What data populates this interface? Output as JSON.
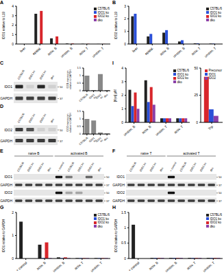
{
  "chart_data": [
    {
      "type": "bar",
      "title": "A",
      "y_label": "IDO1 relative to L19",
      "categories": [
        "liver",
        "epidid.",
        "activ. B",
        "unstim. B",
        "activ. T",
        "unstim. T"
      ],
      "series": [
        {
          "name": "C57BL/6",
          "color": "#222222",
          "values": [
            0,
            3.2,
            0.6,
            0.05,
            0.02,
            0.01
          ]
        },
        {
          "name": "IDO1 ko",
          "color": "#2b50d8",
          "values": [
            0,
            0,
            0,
            0,
            0,
            0
          ]
        },
        {
          "name": "IDO2 ko",
          "color": "#d8262b",
          "values": [
            0,
            3.5,
            0.8,
            0.05,
            0.02,
            0.01
          ]
        },
        {
          "name": "dko",
          "color": "#8b3fa8",
          "values": [
            0,
            0,
            0,
            0,
            0,
            0
          ]
        }
      ],
      "ylim": [
        0,
        4
      ],
      "yticks": [
        0,
        1,
        2,
        3,
        4
      ]
    },
    {
      "type": "bar",
      "title": "B",
      "y_label": "IDO2 relative to L19",
      "categories": [
        "liver",
        "epidid.",
        "activ. B",
        "unstim. B",
        "activ. T",
        "unstim. T"
      ],
      "series": [
        {
          "name": "C57BL/6",
          "color": "#222222",
          "values": [
            2.2,
            0.6,
            0.9,
            0.2,
            0.05,
            0.03
          ]
        },
        {
          "name": "IDO1 ko",
          "color": "#2b50d8",
          "values": [
            2.4,
            0.8,
            1.1,
            0.3,
            0.05,
            0.03
          ]
        },
        {
          "name": "IDO2 ko",
          "color": "#d8262b",
          "values": [
            0,
            0,
            0,
            0,
            0,
            0
          ]
        },
        {
          "name": "dko",
          "color": "#8b3fa8",
          "values": [
            0,
            0,
            0,
            0,
            0,
            0
          ]
        }
      ],
      "ylim": [
        0,
        3
      ],
      "yticks": [
        0,
        1,
        2,
        3
      ]
    },
    {
      "type": "bar",
      "title": "C",
      "y_label": "IDO1 expression relative to GAPDH",
      "categories": [
        "C57BL/6",
        "IDO1 ko",
        "IDO2 ko",
        "dko"
      ],
      "values": [
        1.0,
        0.05,
        1.1,
        0.05
      ],
      "color": "#888888",
      "ylim": [
        0,
        1.5
      ],
      "yticks": [
        0,
        0.5,
        1,
        1.5
      ]
    },
    {
      "type": "bar",
      "title": "D",
      "y_label": "IDO2 expression relative to GAPDH",
      "categories": [
        "C57BL/6",
        "IDO1 ko",
        "IDO2 ko",
        "dko"
      ],
      "values": [
        1.0,
        0.9,
        0.1,
        0.05
      ],
      "color": "#888888",
      "ylim": [
        0,
        1.5
      ],
      "yticks": [
        0,
        0.5,
        1,
        1.5
      ]
    },
    {
      "type": "bar",
      "title": "I",
      "y_label": "[Kyn] µM",
      "categories": [
        "unstim. B",
        "activ. B",
        "unstim. T",
        "activ. T"
      ],
      "series": [
        {
          "name": "C57BL/6",
          "color": "#222222",
          "values": [
            2.4,
            3.1,
            0.3,
            0.3
          ]
        },
        {
          "name": "IDO1 ko",
          "color": "#2b50d8",
          "values": [
            1.2,
            1.5,
            0.3,
            0.3
          ]
        },
        {
          "name": "IDO2 ko",
          "color": "#d8262b",
          "values": [
            2.2,
            2.6,
            0.3,
            0.3
          ]
        },
        {
          "name": "dko",
          "color": "#8b3fa8",
          "values": [
            1.0,
            1.3,
            0.3,
            0.3
          ]
        }
      ],
      "ylim": [
        0,
        4
      ],
      "yticks": [
        0,
        1,
        2,
        3,
        4
      ]
    },
    {
      "type": "bar",
      "categories": [
        "Trp"
      ],
      "series": [
        {
          "name": "Precursor",
          "color": "#d8262b",
          "values": [
            42
          ]
        },
        {
          "name": "IDO1",
          "color": "#2b50d8",
          "values": [
            12
          ]
        },
        {
          "name": "IDO2",
          "color": "#8b3fa8",
          "values": [
            6
          ]
        }
      ],
      "ylim": [
        0,
        50
      ],
      "yticks": [
        0,
        25,
        50
      ]
    },
    {
      "type": "bar",
      "title": "G",
      "y_label": "IDO1 relative to GAPDH",
      "categories": [
        "+ control",
        "activ. B",
        "unstim. B",
        "activ. T",
        "unstim. T"
      ],
      "series": [
        {
          "name": "C57BL/6",
          "color": "#222222",
          "values": [
            1.6,
            0.6,
            0.05,
            0.02,
            0.02
          ]
        },
        {
          "name": "IDO1 ko",
          "color": "#2b50d8",
          "values": [
            null,
            0.02,
            0.02,
            0.02,
            0.02
          ]
        },
        {
          "name": "IDO2 ko",
          "color": "#d8262b",
          "values": [
            null,
            0.7,
            0.05,
            0.02,
            0.02
          ]
        },
        {
          "name": "dko",
          "color": "#8b3fa8",
          "values": [
            null,
            0.02,
            0.02,
            0.02,
            0.02
          ]
        }
      ],
      "ylim": [
        0,
        2
      ],
      "yticks": [
        0,
        1,
        2
      ]
    },
    {
      "type": "bar",
      "title": "H",
      "y_label": "IDO2 relative to GAPDH",
      "categories": [
        "+ control",
        "activ. B",
        "unstim. B",
        "activ. T",
        "unstim. T"
      ],
      "series": [
        {
          "name": "C57BL/6",
          "color": "#222222",
          "values": [
            1.1,
            0.02,
            0.02,
            0.02,
            0.02
          ]
        },
        {
          "name": "IDO1 ko",
          "color": "#2b50d8",
          "values": [
            null,
            0.02,
            0.02,
            0.02,
            0.02
          ]
        },
        {
          "name": "IDO2 ko",
          "color": "#d8262b",
          "values": [
            null,
            0.02,
            0.02,
            0.02,
            0.02
          ]
        },
        {
          "name": "dko",
          "color": "#8b3fa8",
          "values": [
            null,
            0.02,
            0.02,
            0.02,
            0.02
          ]
        }
      ],
      "ylim": [
        0,
        1.5
      ],
      "yticks": [
        0,
        0.5,
        1,
        1.5
      ]
    }
  ],
  "blots": [
    {
      "groups": [
        {
          "lanes": [
            "C57BL/6",
            "IDO1 ko",
            "IDO2 ko",
            "dko"
          ]
        }
      ],
      "rows": [
        {
          "name": "IDO1",
          "marker": 50,
          "bands": [
            0.9,
            0.1,
            0.9,
            0.1
          ]
        },
        {
          "name": "GAPDH",
          "marker": 37,
          "bands": [
            0.8,
            0.8,
            0.8,
            0.8
          ]
        }
      ]
    },
    {
      "groups": [
        {
          "lanes": [
            "C57BL/6",
            "IDO1 ko",
            "IDO2 ko",
            "dko"
          ]
        }
      ],
      "rows": [
        {
          "name": "IDO2",
          "marker": 50,
          "bands": [
            0.8,
            0.7,
            0.1,
            0.1
          ]
        },
        {
          "name": "GAPDH",
          "marker": 37,
          "bands": [
            0.8,
            0.8,
            0.8,
            0.8
          ]
        }
      ]
    },
    {
      "title": "E",
      "groups": [
        {
          "name": "naive B",
          "lanes": [
            "C57BL/6",
            "IDO1 ko",
            "IDO2 ko",
            "dko"
          ]
        },
        {
          "name": "activated B",
          "lanes": [
            "+ control",
            "C57BL/6",
            "IDO1 ko",
            "IDO2 ko",
            "dko"
          ]
        }
      ],
      "rows": [
        {
          "name": "IDO1",
          "marker": 50,
          "bands": [
            0,
            0,
            0,
            0,
            1,
            0.5,
            0,
            0.6,
            0
          ]
        },
        {
          "name": "GAPDH",
          "marker": 37,
          "bands": [
            0.8,
            0.8,
            0.8,
            0.8,
            0.8,
            0.8,
            0.8,
            0.8,
            0.8
          ]
        },
        {
          "name": "IDO2",
          "marker": 50,
          "bands": [
            0,
            0,
            0,
            0,
            1,
            0.3,
            0.3,
            0,
            0
          ]
        },
        {
          "name": "GAPDH",
          "marker": 37,
          "bands": [
            0.8,
            0.8,
            0.8,
            0.8,
            0.8,
            0.8,
            0.8,
            0.8,
            0.8
          ]
        }
      ]
    },
    {
      "title": "F",
      "groups": [
        {
          "name": "naive T",
          "lanes": [
            "C57BL/6",
            "IDO1 ko",
            "IDO2 ko",
            "dko"
          ]
        },
        {
          "name": "activated T",
          "lanes": [
            "+ control",
            "C57BL/6",
            "IDO1 ko",
            "IDO2 ko",
            "dko"
          ]
        }
      ],
      "rows": [
        {
          "name": "IDO1",
          "marker": 50,
          "bands": [
            0,
            0,
            0,
            0,
            1,
            0,
            0,
            0,
            0
          ]
        },
        {
          "name": "GAPDH",
          "marker": 37,
          "bands": [
            0.8,
            0.8,
            0.8,
            0.8,
            0.8,
            0.8,
            0.8,
            0.8,
            0.8
          ]
        },
        {
          "name": "IDO2",
          "marker": 50,
          "bands": [
            0,
            0,
            0,
            0,
            1,
            0,
            0,
            0,
            0
          ]
        },
        {
          "name": "GAPDH",
          "marker": 37,
          "bands": [
            0.8,
            0.8,
            0.8,
            0.8,
            0.8,
            0.8,
            0.8,
            0.8,
            0.8
          ]
        }
      ]
    }
  ]
}
